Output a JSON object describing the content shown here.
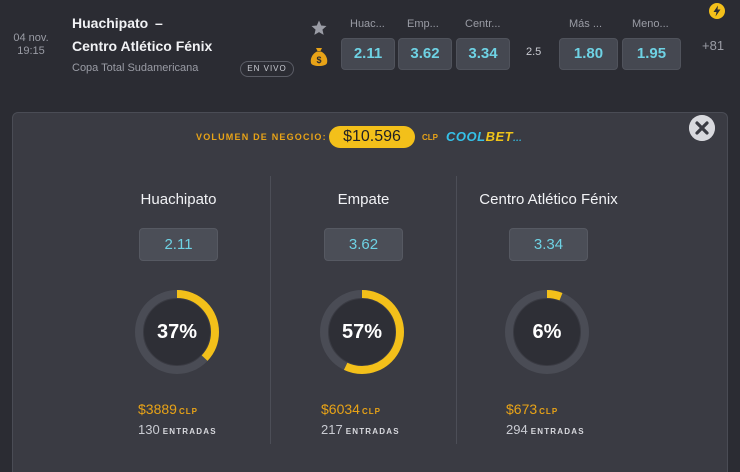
{
  "match": {
    "date": "04 nov.",
    "time": "19:15",
    "home_team": "Huachipato",
    "separator": "–",
    "away_team": "Centro Atlético Fénix",
    "league": "Copa Total Sudamericana",
    "live_label": "EN VIVO",
    "columns": [
      "Huac...",
      "Emp...",
      "Centr...",
      "Más ...",
      "Meno..."
    ],
    "odds": [
      "2.11",
      "3.62",
      "3.34"
    ],
    "total_line": "2.5",
    "over_under": [
      "1.80",
      "1.95"
    ],
    "more_markets": "+81"
  },
  "panel": {
    "volume_label": "VOLUMEN DE NEGOCIO:",
    "volume_amount": "$10.596",
    "currency": "CLP",
    "brand_left": "COOL",
    "brand_right": "BET",
    "brand_suffix": "...",
    "outcomes": [
      {
        "name": "Huachipato",
        "odd": "2.11",
        "percent_label": "37%",
        "percent": 37,
        "amount": "$3889",
        "currency": "CLP",
        "entries": "130",
        "entries_label": "ENTRADAS"
      },
      {
        "name": "Empate",
        "odd": "3.62",
        "percent_label": "57%",
        "percent": 57,
        "amount": "$6034",
        "currency": "CLP",
        "entries": "217",
        "entries_label": "ENTRADAS"
      },
      {
        "name": "Centro Atlético Fénix",
        "odd": "3.34",
        "percent_label": "6%",
        "percent": 6,
        "amount": "$673",
        "currency": "CLP",
        "entries": "294",
        "entries_label": "ENTRADAS"
      }
    ]
  },
  "icons": [
    "star-icon",
    "money-bag-icon",
    "lightning-icon",
    "close-icon"
  ],
  "colors": {
    "accent_yellow": "#f3c01a",
    "odds_cyan": "#6ed2e4",
    "panel_bg": "#3a3b43",
    "page_bg": "#2b2c33"
  }
}
